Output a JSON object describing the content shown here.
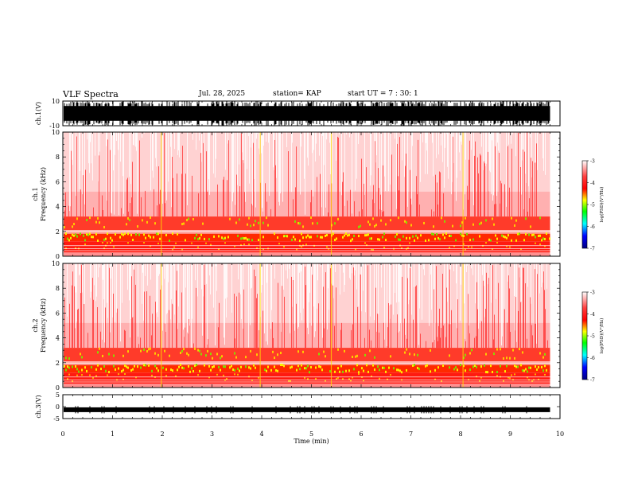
{
  "header": {
    "title": "VLF Spectra",
    "date": "Jul. 28, 2025",
    "station": "station= KAP",
    "start_ut": "start UT =  7 : 30: 1"
  },
  "chart_data": [
    {
      "type": "line",
      "name": "ch1-waveform",
      "ylabel": "ch.1(V)",
      "ylim": [
        -10,
        10
      ],
      "ytick_labels": [
        "10",
        "-10"
      ],
      "xlim": [
        0,
        10
      ],
      "data_end_min": 9.8,
      "description_value_range": [
        -10,
        10
      ]
    },
    {
      "type": "heatmap",
      "name": "ch1-spectrogram",
      "ylabel": "ch.1\nFrequency (kHz)",
      "ylim": [
        0,
        10
      ],
      "ytick_labels": [
        "0",
        "2",
        "4",
        "6",
        "8",
        "10"
      ],
      "xlim": [
        0,
        10
      ],
      "data_end_min": 9.8,
      "bands_khz": [
        [
          0.3,
          1.2
        ],
        [
          1.2,
          1.8
        ],
        [
          2.1,
          3.2
        ],
        [
          3.2,
          10
        ]
      ],
      "colorbar": {
        "label": "log(PSD)(V²/Hz)",
        "range": [
          -7,
          -3
        ],
        "tick_labels": [
          "-3",
          "-4",
          "-5",
          "-6",
          "-7"
        ],
        "colors": [
          "#ffffff",
          "#ff0000",
          "#ffff00",
          "#00ff00",
          "#00ffff",
          "#0000ff",
          "#000080"
        ]
      }
    },
    {
      "type": "heatmap",
      "name": "ch2-spectrogram",
      "ylabel": "ch.2\nFrequency (kHz)",
      "ylim": [
        0,
        10
      ],
      "ytick_labels": [
        "0",
        "2",
        "4",
        "6",
        "8",
        "10"
      ],
      "xlim": [
        0,
        10
      ],
      "data_end_min": 9.8,
      "bands_khz": [
        [
          0.3,
          1.2
        ],
        [
          1.2,
          1.8
        ],
        [
          2.1,
          3.2
        ],
        [
          3.2,
          10
        ]
      ],
      "colorbar": {
        "label": "log(PSD)(V²/Hz)",
        "range": [
          -7,
          -3
        ],
        "tick_labels": [
          "-3",
          "-4",
          "-5",
          "-6",
          "-7"
        ],
        "colors": [
          "#ffffff",
          "#ff0000",
          "#ffff00",
          "#00ff00",
          "#00ffff",
          "#0000ff",
          "#000080"
        ]
      }
    },
    {
      "type": "line",
      "name": "ch3-waveform",
      "ylabel": "ch.3(V)",
      "ylim": [
        -5,
        5
      ],
      "ytick_labels": [
        "5",
        "0",
        "-5"
      ],
      "xlim": [
        0,
        10
      ],
      "data_end_min": 9.8,
      "trace_level_v": -1.3
    }
  ],
  "xaxis": {
    "label": "Time (min)",
    "tick_labels": [
      "0",
      "1",
      "2",
      "3",
      "4",
      "5",
      "6",
      "7",
      "8",
      "9",
      "10"
    ]
  }
}
